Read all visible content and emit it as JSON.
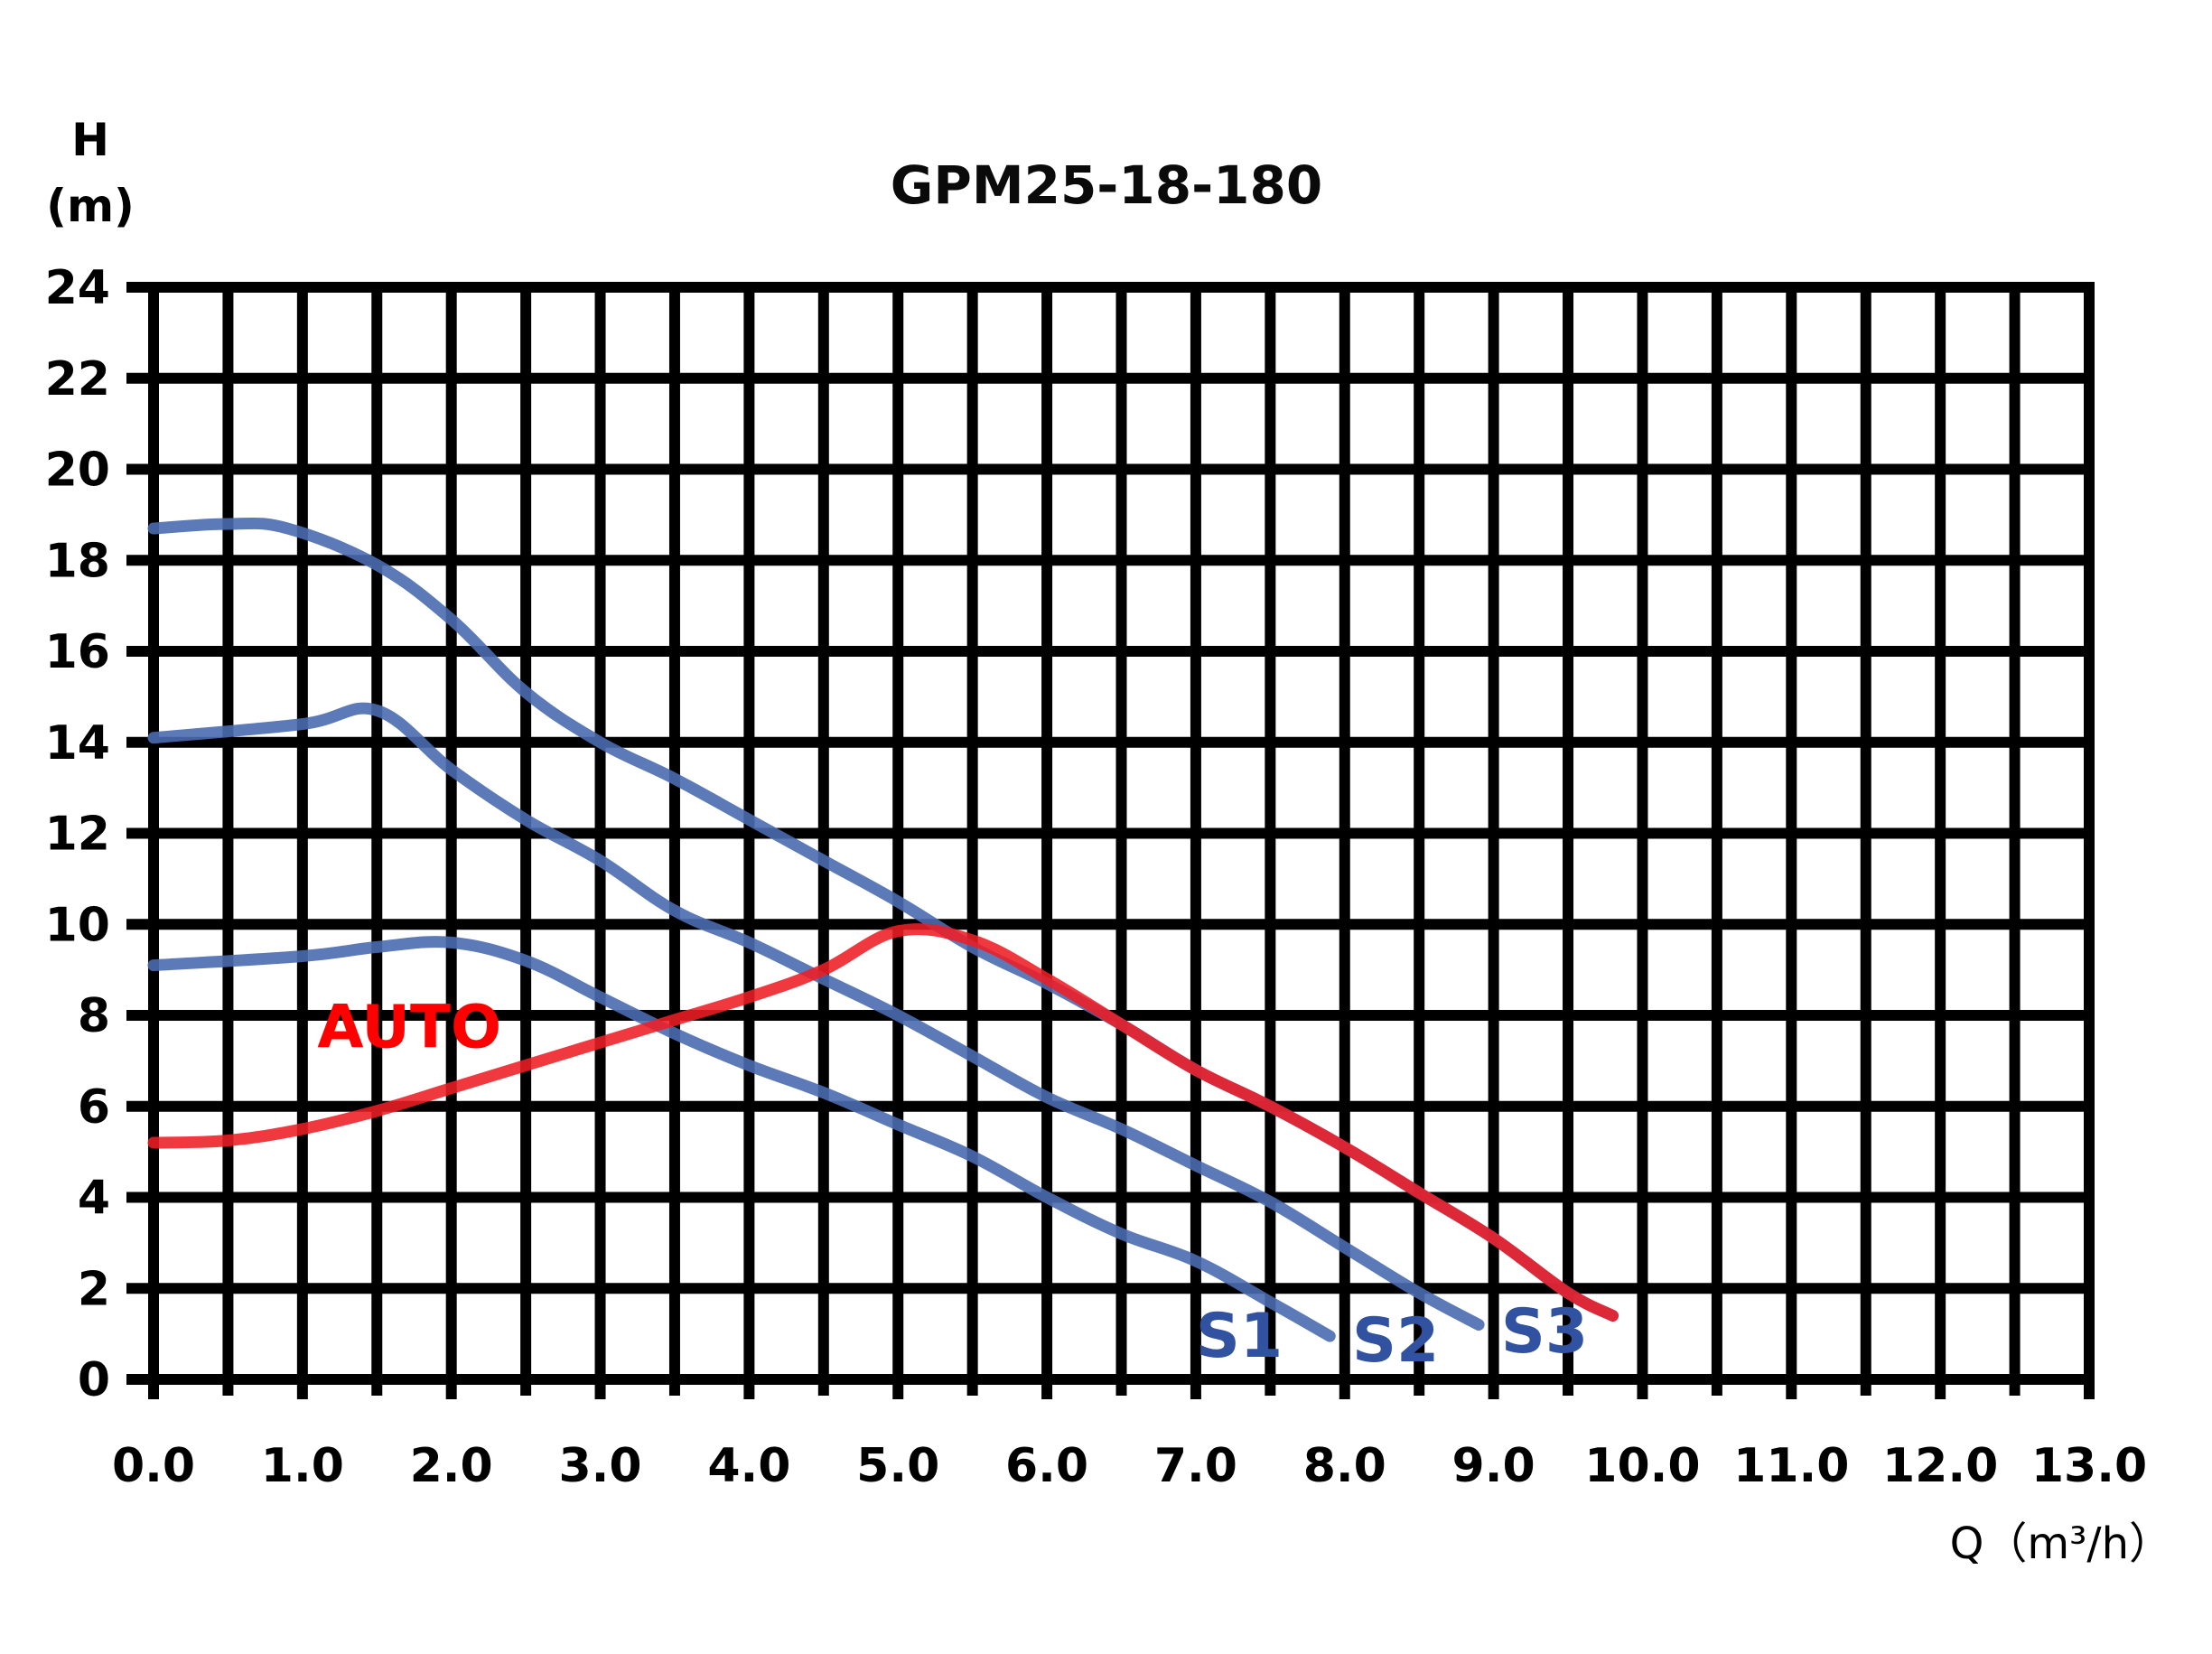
{
  "chart_data": {
    "type": "line",
    "title": "GPM25-18-180",
    "xlabel": "Q（m³/h）",
    "ylabel_line1": "H",
    "ylabel_line2": "(m)",
    "xlim": [
      0,
      13
    ],
    "ylim": [
      0,
      24
    ],
    "grid": true,
    "grid_x_step": 0.5,
    "grid_y_step": 2,
    "x_ticks": [
      "0.0",
      "1.0",
      "2.0",
      "3.0",
      "4.0",
      "5.0",
      "6.0",
      "7.0",
      "8.0",
      "9.0",
      "10.0",
      "11.0",
      "12.0",
      "13.0"
    ],
    "y_ticks": [
      "0",
      "2",
      "4",
      "6",
      "8",
      "10",
      "12",
      "14",
      "16",
      "18",
      "20",
      "22",
      "24"
    ],
    "series": [
      {
        "name": "S1",
        "color": "#4a6bb0",
        "label_color": "#3152a0",
        "points": [
          [
            0,
            9.1
          ],
          [
            1,
            9.3
          ],
          [
            1.5,
            9.5
          ],
          [
            2,
            9.6
          ],
          [
            2.5,
            9.2
          ],
          [
            3,
            8.4
          ],
          [
            3.5,
            7.6
          ],
          [
            4,
            6.9
          ],
          [
            4.5,
            6.3
          ],
          [
            5,
            5.6
          ],
          [
            5.5,
            4.9
          ],
          [
            6,
            4.0
          ],
          [
            6.5,
            3.2
          ],
          [
            7,
            2.6
          ],
          [
            7.5,
            1.7
          ],
          [
            7.9,
            0.95
          ]
        ]
      },
      {
        "name": "S2",
        "color": "#4a6bb0",
        "label_color": "#3152a0",
        "points": [
          [
            0,
            14.1
          ],
          [
            1,
            14.4
          ],
          [
            1.5,
            14.7
          ],
          [
            2,
            13.4
          ],
          [
            2.5,
            12.3
          ],
          [
            3,
            11.4
          ],
          [
            3.5,
            10.3
          ],
          [
            4,
            9.6
          ],
          [
            4.5,
            8.8
          ],
          [
            5,
            8.0
          ],
          [
            5.5,
            7.1
          ],
          [
            6,
            6.2
          ],
          [
            6.5,
            5.5
          ],
          [
            7,
            4.7
          ],
          [
            7.5,
            3.9
          ],
          [
            8,
            2.9
          ],
          [
            8.5,
            1.9
          ],
          [
            8.9,
            1.2
          ]
        ]
      },
      {
        "name": "S3",
        "color": "#4a6bb0",
        "label_color": "#3152a0",
        "points": [
          [
            0,
            18.7
          ],
          [
            0.5,
            18.8
          ],
          [
            0.9,
            18.7
          ],
          [
            1.5,
            17.9
          ],
          [
            2,
            16.7
          ],
          [
            2.5,
            15.1
          ],
          [
            3,
            14.0
          ],
          [
            3.5,
            13.2
          ],
          [
            4,
            12.3
          ],
          [
            4.5,
            11.4
          ],
          [
            5,
            10.5
          ],
          [
            5.5,
            9.5
          ],
          [
            6,
            8.7
          ],
          [
            6.5,
            7.8
          ],
          [
            7,
            6.8
          ],
          [
            7.5,
            6.0
          ],
          [
            8,
            5.1
          ],
          [
            8.5,
            4.1
          ],
          [
            9,
            3.1
          ],
          [
            9.5,
            1.9
          ],
          [
            9.8,
            1.4
          ]
        ]
      },
      {
        "name": "AUTO",
        "color": "#ee1c24",
        "label_color": "#ff0000",
        "points": [
          [
            0,
            5.2
          ],
          [
            0.5,
            5.25
          ],
          [
            1,
            5.5
          ],
          [
            1.5,
            5.9
          ],
          [
            2,
            6.4
          ],
          [
            2.5,
            6.9
          ],
          [
            3,
            7.4
          ],
          [
            3.5,
            7.9
          ],
          [
            4,
            8.4
          ],
          [
            4.5,
            9.0
          ],
          [
            5,
            9.85
          ],
          [
            5.5,
            9.65
          ],
          [
            6,
            8.8
          ],
          [
            6.5,
            7.8
          ],
          [
            7,
            6.8
          ],
          [
            7.5,
            6.0
          ],
          [
            8,
            5.1
          ],
          [
            8.5,
            4.1
          ],
          [
            9,
            3.1
          ],
          [
            9.5,
            1.9
          ],
          [
            9.8,
            1.4
          ]
        ]
      }
    ],
    "annotations": [
      {
        "text": "AUTO",
        "x": 1.1,
        "y": 7.3,
        "color": "#ff0000"
      },
      {
        "text": "S1",
        "x": 7.0,
        "y": 0.5,
        "color": "#3152a0"
      },
      {
        "text": "S2",
        "x": 8.05,
        "y": 0.4,
        "color": "#3152a0"
      },
      {
        "text": "S3",
        "x": 9.05,
        "y": 0.6,
        "color": "#3152a0"
      }
    ]
  }
}
